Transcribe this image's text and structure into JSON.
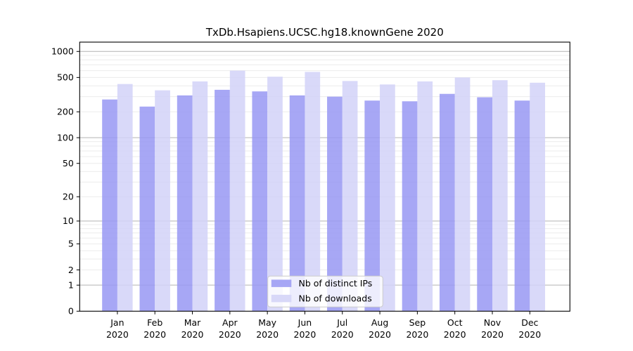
{
  "chart_data": {
    "type": "bar",
    "title": "TxDb.Hsapiens.UCSC.hg18.knownGene 2020",
    "categories": [
      "Jan",
      "Feb",
      "Mar",
      "Apr",
      "May",
      "Jun",
      "Jul",
      "Aug",
      "Sep",
      "Oct",
      "Nov",
      "Dec"
    ],
    "category_year": "2020",
    "series": [
      {
        "name": "Nb of distinct IPs",
        "color": "#9898f3",
        "legend_color": "#a6a6f5",
        "values": [
          278,
          230,
          310,
          360,
          345,
          310,
          300,
          270,
          265,
          323,
          295,
          270
        ]
      },
      {
        "name": "Nb of downloads",
        "color": "#d2d2f8",
        "legend_color": "#d8d8f8",
        "values": [
          420,
          355,
          450,
          600,
          510,
          580,
          455,
          415,
          450,
          500,
          465,
          435
        ]
      }
    ],
    "bar_opacity": 0.85,
    "yscale": "log1p",
    "ytick_values": [
      0,
      1,
      2,
      5,
      10,
      20,
      50,
      100,
      200,
      500,
      1000
    ],
    "ytick_labels": [
      "0",
      "1",
      "2",
      "5",
      "10",
      "20",
      "50",
      "100",
      "200",
      "500",
      "1000"
    ],
    "ylim": [
      0,
      1240
    ],
    "grid": "horizontal-log-minor",
    "grid_major_color": "#b3b3b3",
    "grid_minor_color": "#ebebeb",
    "axis_color": "#000000",
    "legend_position": "bottom-center"
  }
}
